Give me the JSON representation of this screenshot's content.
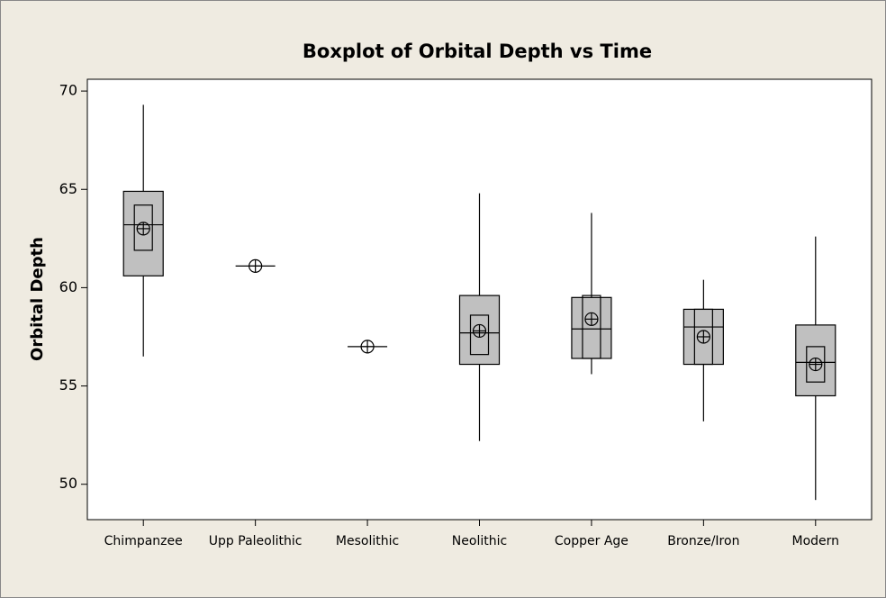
{
  "chart_data": {
    "type": "boxplot",
    "title": "Boxplot of Orbital Depth vs Time",
    "ylabel": "Orbital Depth",
    "categories": [
      "Chimpanzee",
      "Upp Paleolithic",
      "Mesolithic",
      "Neolithic",
      "Copper Age",
      "Bronze/Iron",
      "Modern"
    ],
    "boxes": [
      {
        "min": 56.5,
        "q1": 60.6,
        "median": 63.2,
        "q3": 64.9,
        "max": 69.3,
        "mean": 63.0,
        "ci_low": 61.9,
        "ci_high": 64.2
      },
      {
        "min": 61.1,
        "q1": 61.1,
        "median": 61.1,
        "q3": 61.1,
        "max": 61.1,
        "mean": 61.1,
        "ci_low": null,
        "ci_high": null
      },
      {
        "min": 57.0,
        "q1": 57.0,
        "median": 57.0,
        "q3": 57.0,
        "max": 57.0,
        "mean": 57.0,
        "ci_low": null,
        "ci_high": null
      },
      {
        "min": 52.2,
        "q1": 56.1,
        "median": 57.7,
        "q3": 59.6,
        "max": 64.8,
        "mean": 57.8,
        "ci_low": 56.6,
        "ci_high": 58.6
      },
      {
        "min": 55.6,
        "q1": 56.4,
        "median": 57.9,
        "q3": 59.5,
        "max": 63.8,
        "mean": 58.4,
        "ci_low": 56.4,
        "ci_high": 59.6
      },
      {
        "min": 53.2,
        "q1": 56.1,
        "median": 58.0,
        "q3": 58.9,
        "max": 60.4,
        "mean": 57.5,
        "ci_low": 56.1,
        "ci_high": 58.9
      },
      {
        "min": 49.2,
        "q1": 54.5,
        "median": 56.2,
        "q3": 58.1,
        "max": 62.6,
        "mean": 56.1,
        "ci_low": 55.2,
        "ci_high": 57.0
      }
    ],
    "box_color": "#c0c0c0",
    "ylim": [
      48.2,
      70.6
    ],
    "yticks": [
      50,
      55,
      60,
      65,
      70
    ]
  }
}
